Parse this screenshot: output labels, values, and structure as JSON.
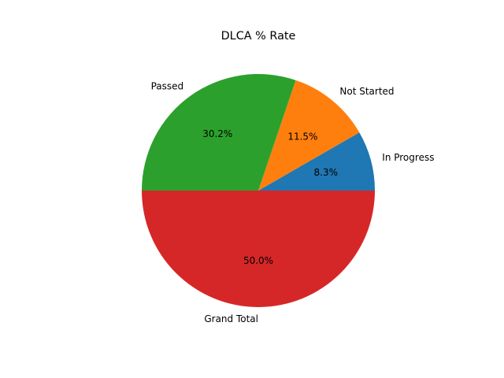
{
  "chart_data": {
    "type": "pie",
    "title": "DLCA % Rate",
    "slices": [
      {
        "label": "In Progress",
        "value": 8.3,
        "pct_label": "8.3%",
        "color": "#1f77b4"
      },
      {
        "label": "Not Started",
        "value": 11.5,
        "pct_label": "11.5%",
        "color": "#ff7f0e"
      },
      {
        "label": "Passed",
        "value": 30.2,
        "pct_label": "30.2%",
        "color": "#2ca02c"
      },
      {
        "label": "Grand Total",
        "value": 50.0,
        "pct_label": "50.0%",
        "color": "#d62728"
      }
    ],
    "start_angle_deg": 0,
    "direction": "counterclockwise",
    "legend": "none"
  }
}
